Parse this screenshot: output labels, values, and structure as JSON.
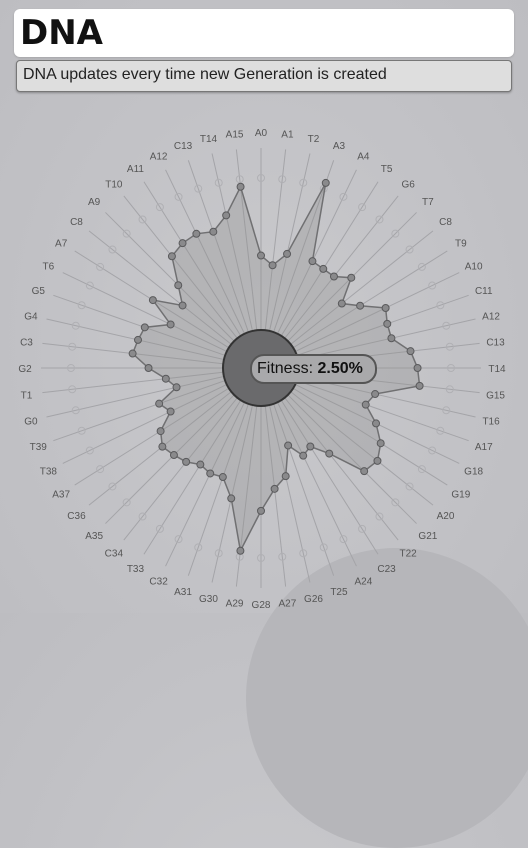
{
  "header": {
    "title": "DNA",
    "subtitle": "DNA updates every time new Generation is created"
  },
  "fitness": {
    "label": "Fitness:",
    "value": "2.50%"
  },
  "colors": {
    "fill": "#8e8e90",
    "stroke": "#707072",
    "center": "#6a6a6c"
  },
  "chart_data": {
    "type": "radar",
    "categories": [
      "A0",
      "A1",
      "T2",
      "A3",
      "A4",
      "T5",
      "G6",
      "T7",
      "C8",
      "T9",
      "A10",
      "C11",
      "A12",
      "C13",
      "T14",
      "G15",
      "T16",
      "A17",
      "G18",
      "G19",
      "A20",
      "G21",
      "T22",
      "C23",
      "A24",
      "T25",
      "G26",
      "A27",
      "G28",
      "A29",
      "G30",
      "A31",
      "C32",
      "T33",
      "C34",
      "A35",
      "C36",
      "A37",
      "T38",
      "T39",
      "G0",
      "T1",
      "G2",
      "C3",
      "G4",
      "G5",
      "T6",
      "A7",
      "C8",
      "A9",
      "T10",
      "A11",
      "A12",
      "C13",
      "T14",
      "A15"
    ],
    "values": [
      0.49,
      0.43,
      0.52,
      1.04,
      0.53,
      0.52,
      0.52,
      0.59,
      0.43,
      0.52,
      0.66,
      0.63,
      0.63,
      0.74,
      0.78,
      0.8,
      0.52,
      0.48,
      0.59,
      0.68,
      0.73,
      0.71,
      0.47,
      0.36,
      0.39,
      0.29,
      0.48,
      0.55,
      0.69,
      0.96,
      0.63,
      0.51,
      0.52,
      0.5,
      0.54,
      0.56,
      0.58,
      0.53,
      0.41,
      0.46,
      0.32,
      0.38,
      0.49,
      0.6,
      0.58,
      0.56,
      0.41,
      0.59,
      0.41,
      0.52,
      0.69,
      0.72,
      0.73,
      0.7,
      0.78,
      0.95
    ],
    "max": 1.0
  }
}
